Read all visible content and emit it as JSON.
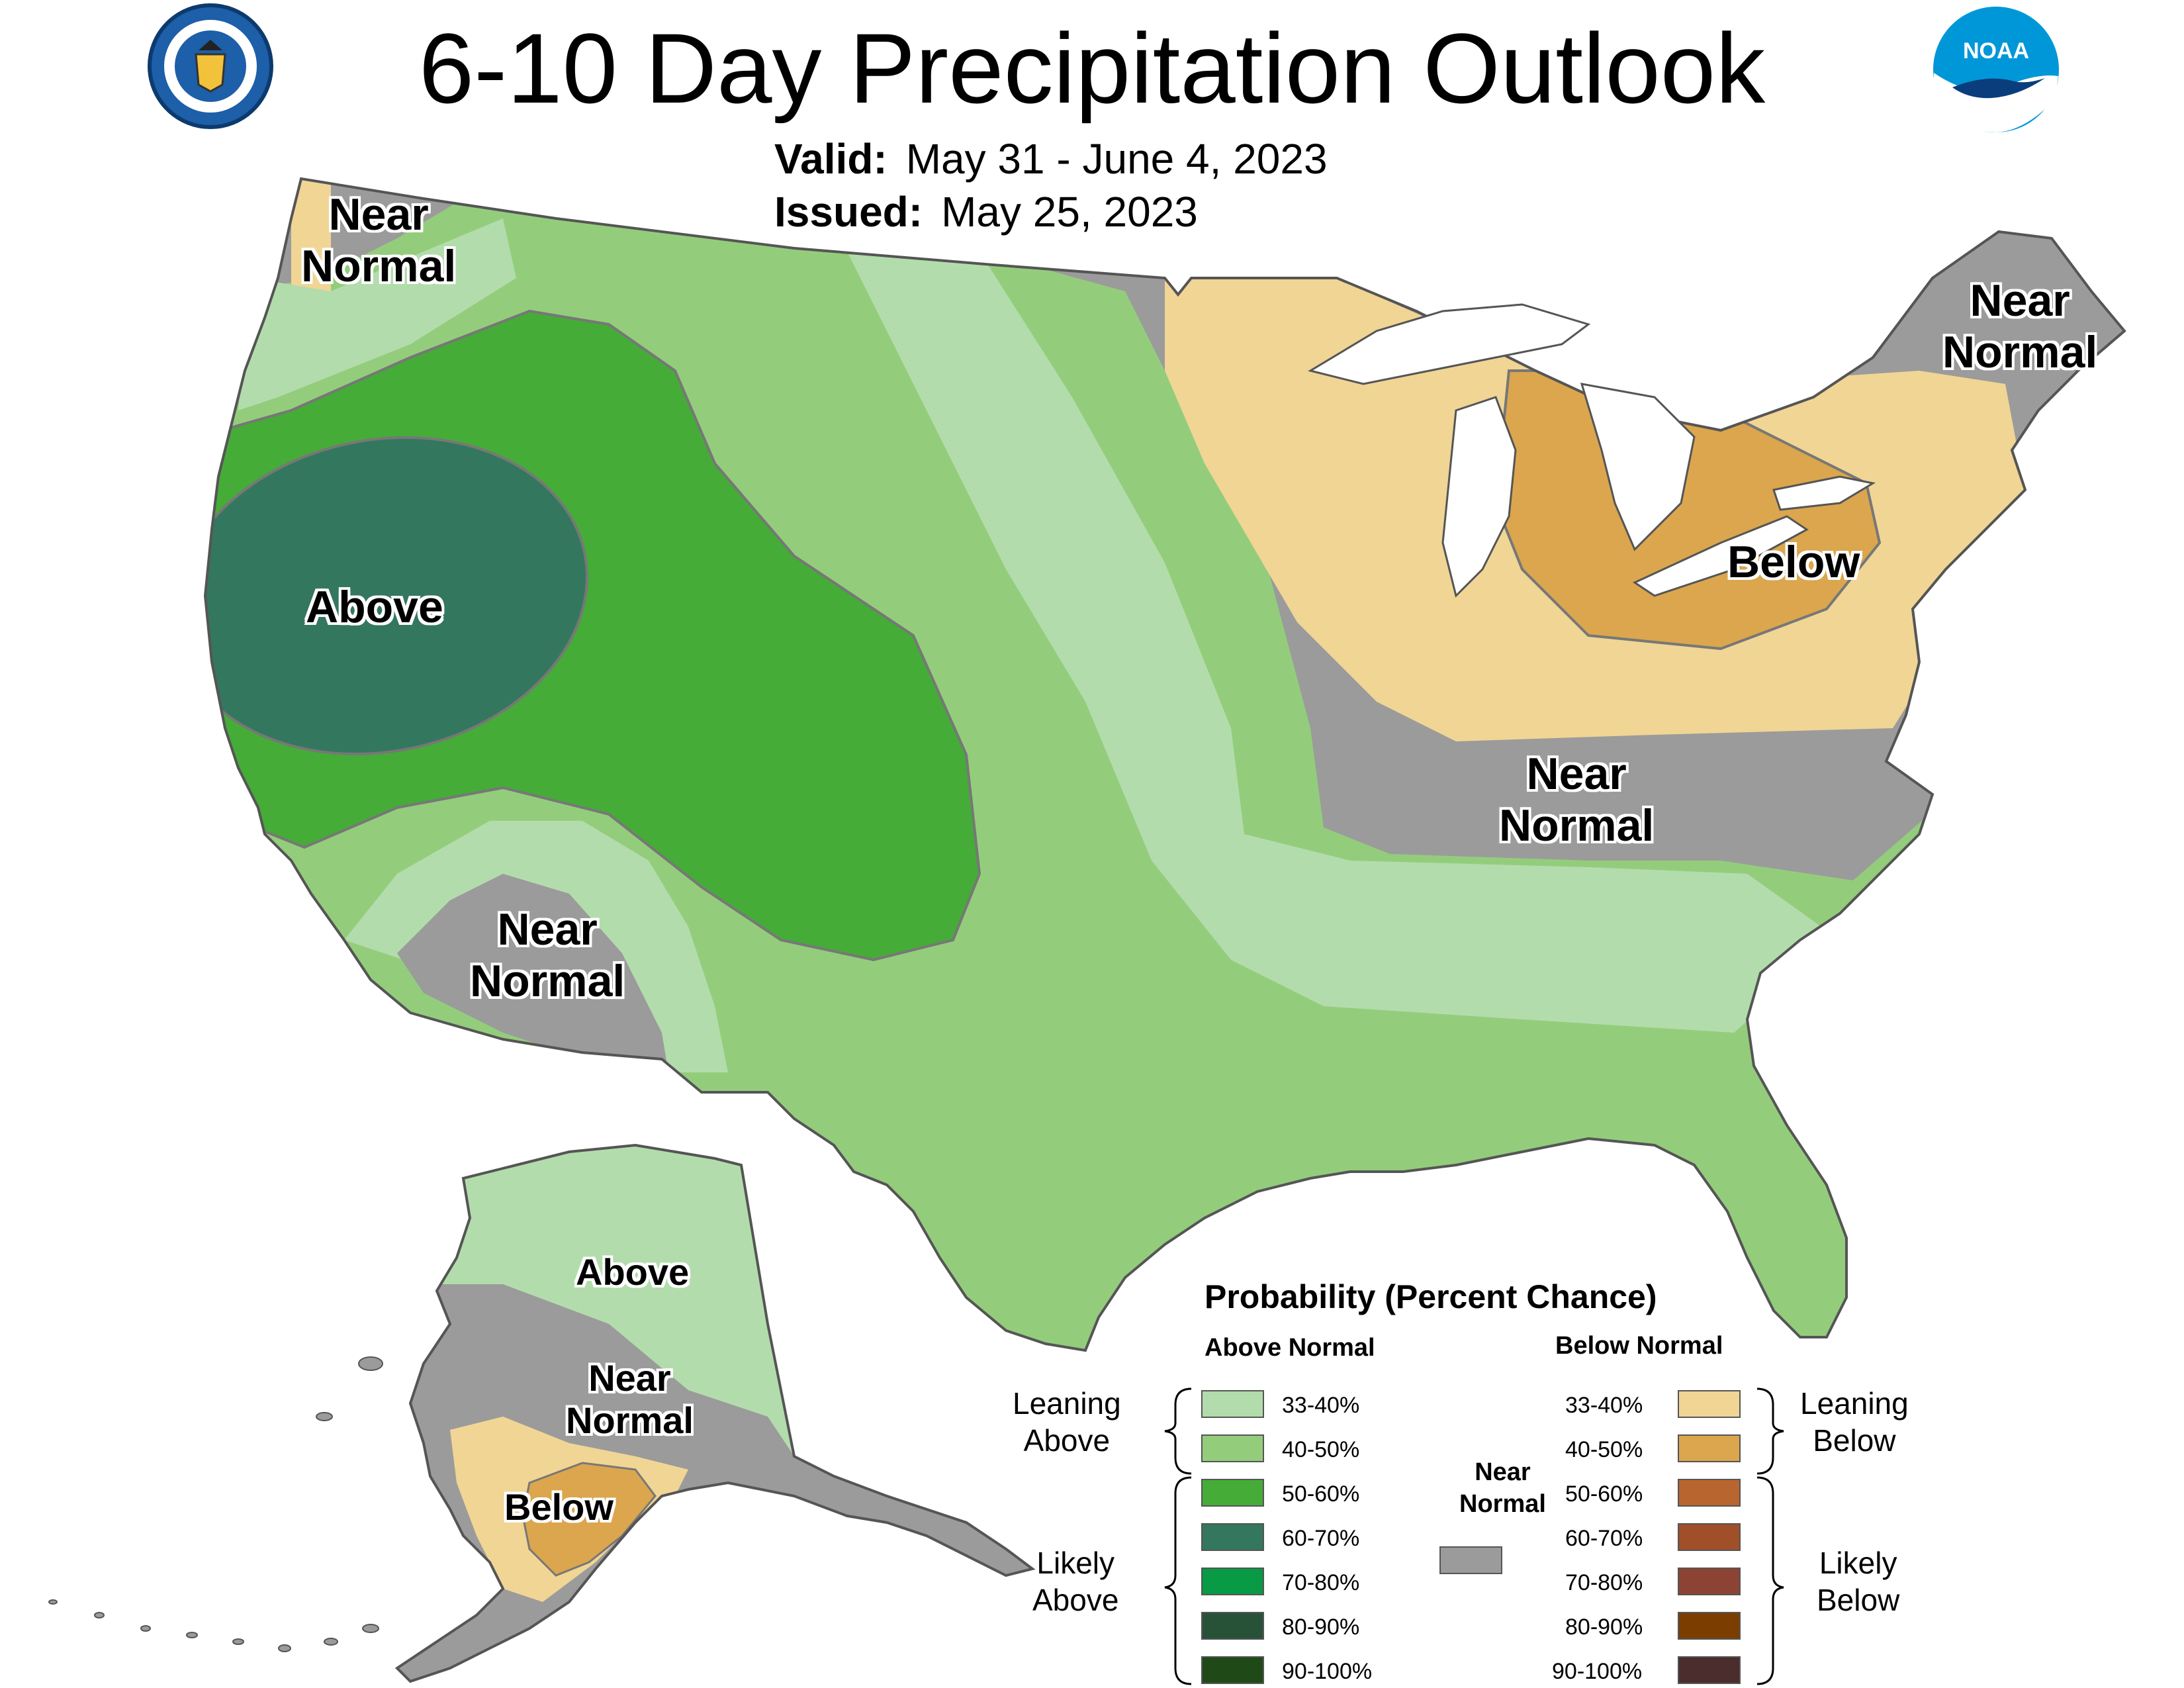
{
  "header": {
    "title": "6-10 Day Precipitation Outlook",
    "valid_label": "Valid:",
    "valid_value": "May 31 - June 4, 2023",
    "issued_label": "Issued:",
    "issued_value": "May 25, 2023"
  },
  "logos": {
    "commerce": "Department of Commerce seal",
    "noaa_text": "NOAA"
  },
  "colors": {
    "above_33_40": "#b3dcac",
    "above_40_50": "#93cd7c",
    "above_50_60": "#45ac38",
    "above_60_70": "#33775e",
    "above_70_80": "#089a45",
    "above_80_90": "#285238",
    "above_90_100": "#1f4a17",
    "near_normal": "#9b9b9b",
    "below_33_40": "#f0d595",
    "below_40_50": "#dba64d",
    "below_50_60": "#b8652f",
    "below_60_70": "#a04f28",
    "below_70_80": "#8c4333",
    "below_80_90": "#7b3d00",
    "below_90_100": "#4b2d2d"
  },
  "map_labels": {
    "nw_near_normal": "Near\nNormal",
    "west_above": "Above",
    "sw_near_normal": "Near\nNormal",
    "ne_near_normal": "Near\nNormal",
    "gl_below": "Below",
    "mid_near_normal": "Near\nNormal",
    "ak_above": "Above",
    "ak_near_normal": "Near\nNormal",
    "ak_below": "Below"
  },
  "legend": {
    "title": "Probability (Percent Chance)",
    "above_header": "Above Normal",
    "below_header": "Below Normal",
    "leaning_above": "Leaning\nAbove",
    "likely_above": "Likely\nAbove",
    "leaning_below": "Leaning\nBelow",
    "likely_below": "Likely\nBelow",
    "near_normal": "Near\nNormal",
    "above_bins": [
      "33-40%",
      "40-50%",
      "50-60%",
      "60-70%",
      "70-80%",
      "80-90%",
      "90-100%"
    ],
    "below_bins": [
      "33-40%",
      "40-50%",
      "50-60%",
      "60-70%",
      "70-80%",
      "80-90%",
      "90-100%"
    ]
  }
}
